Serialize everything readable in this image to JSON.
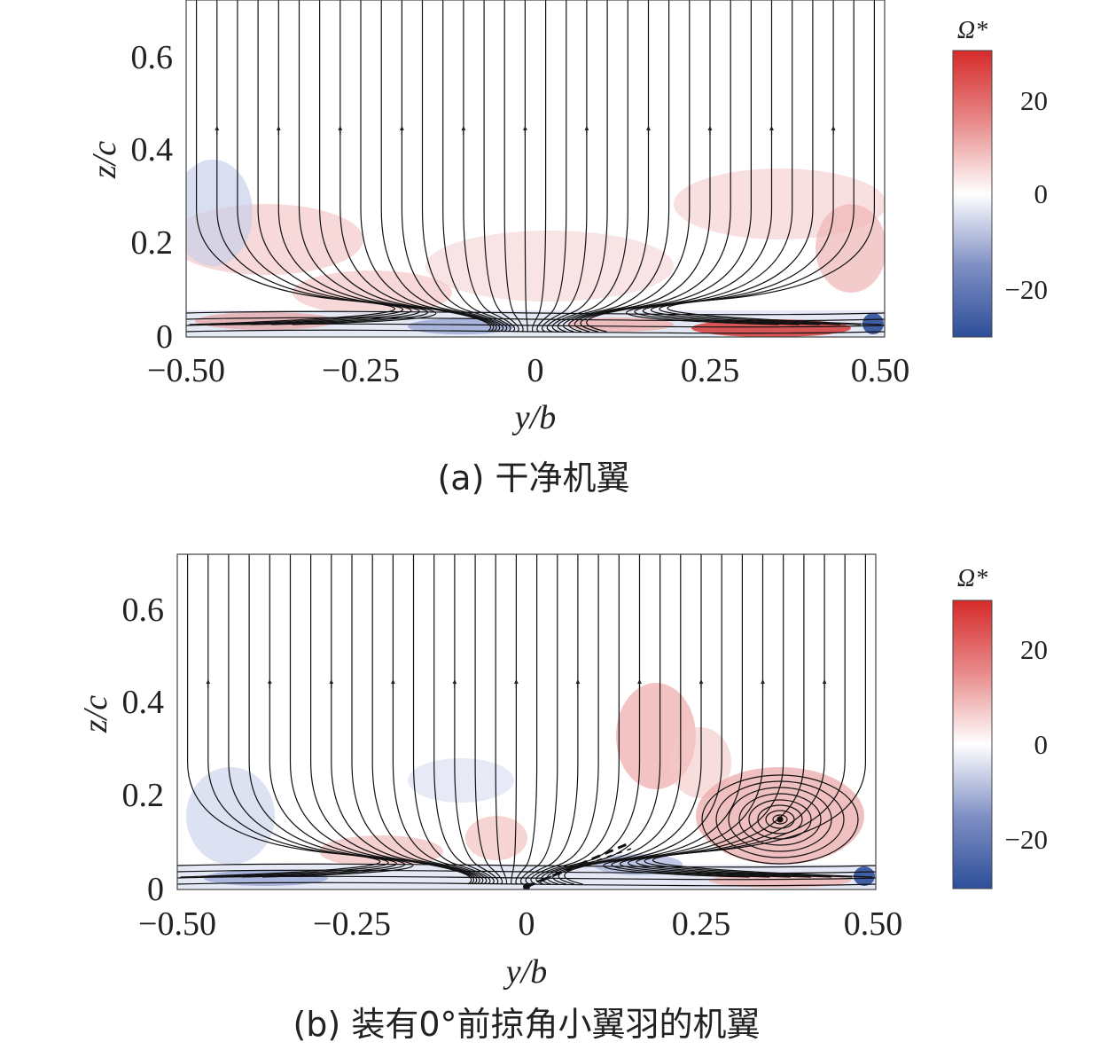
{
  "chart_data": [
    {
      "type": "streamline-contour",
      "caption": "(a) 干净机翼",
      "xlabel": "y/b",
      "ylabel": "z/c",
      "xlim": [
        -0.5,
        0.5
      ],
      "ylim": [
        0,
        0.72
      ],
      "xticks": [
        "−0.50",
        "−0.25",
        "0",
        "0.25",
        "0.50"
      ],
      "xtick_values": [
        -0.5,
        -0.25,
        0,
        0.25,
        0.5
      ],
      "yticks": [
        "0",
        "0.2",
        "0.4",
        "0.6"
      ],
      "ytick_values": [
        0,
        0.2,
        0.4,
        0.6
      ],
      "colorbar": {
        "label": "Ω*",
        "range": [
          -30,
          30
        ],
        "ticks": [
          "20",
          "0",
          "−20"
        ],
        "tick_values": [
          20,
          0,
          -20
        ],
        "colors": [
          "#2d4f9a",
          "#ffffff",
          "#d62a2a"
        ]
      },
      "features": [
        "convergence toward y/b≈0 near wall"
      ]
    },
    {
      "type": "streamline-contour",
      "caption": "(b) 装有0°前掠角小翼羽的机翼",
      "xlabel": "y/b",
      "ylabel": "z/c",
      "xlim": [
        -0.5,
        0.5
      ],
      "ylim": [
        0,
        0.72
      ],
      "xticks": [
        "−0.50",
        "−0.25",
        "0",
        "0.25",
        "0.50"
      ],
      "xtick_values": [
        -0.5,
        -0.25,
        0,
        0.25,
        0.5
      ],
      "yticks": [
        "0",
        "0.2",
        "0.4",
        "0.6"
      ],
      "ytick_values": [
        0,
        0.2,
        0.4,
        0.6
      ],
      "colorbar": {
        "label": "Ω*",
        "range": [
          -30,
          30
        ],
        "ticks": [
          "20",
          "0",
          "−20"
        ],
        "tick_values": [
          20,
          0,
          -20
        ],
        "colors": [
          "#2d4f9a",
          "#ffffff",
          "#d62a2a"
        ]
      },
      "features": [
        "vortex centred near y/b≈0.37, z/c≈0.15",
        "feather from y/b=0 to y/b≈0.15"
      ]
    }
  ]
}
